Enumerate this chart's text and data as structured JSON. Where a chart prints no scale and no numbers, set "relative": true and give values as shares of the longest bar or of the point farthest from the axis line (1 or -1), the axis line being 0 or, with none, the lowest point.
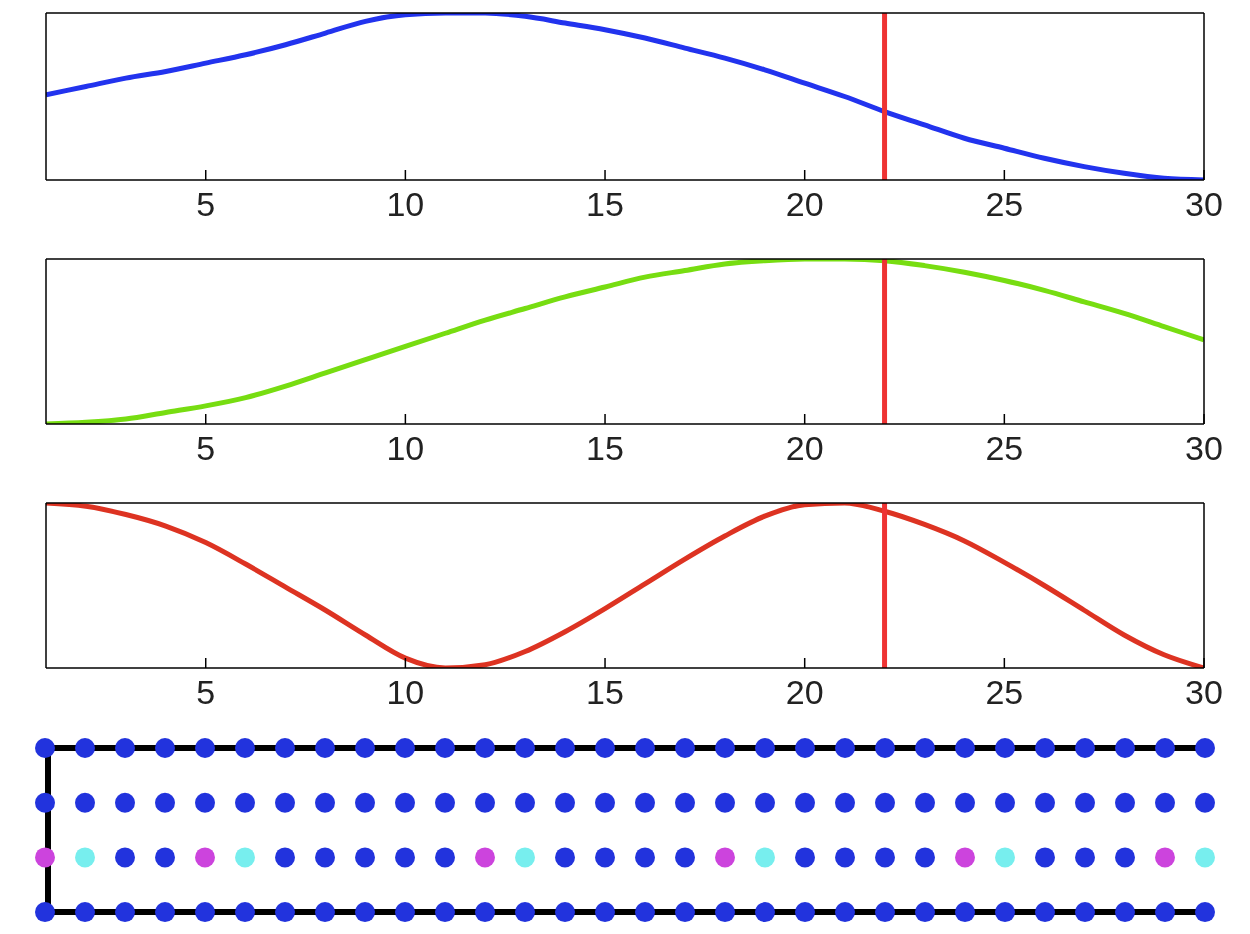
{
  "chart_data": [
    {
      "type": "line",
      "relative": true,
      "tick_labels": "x",
      "x": [
        1,
        2,
        3,
        4,
        5,
        6,
        7,
        8,
        9,
        10,
        11,
        12,
        13,
        14,
        15,
        16,
        17,
        18,
        19,
        20,
        21,
        22,
        23,
        24,
        25,
        26,
        27,
        28,
        29,
        30
      ],
      "xlim": [
        1,
        30
      ],
      "xticks": [
        5,
        10,
        15,
        20,
        25,
        30
      ],
      "series": [
        {
          "color": "#2233ee",
          "values": [
            0.51,
            0.56,
            0.61,
            0.65,
            0.7,
            0.75,
            0.81,
            0.88,
            0.95,
            0.99,
            1,
            1,
            0.98,
            0.94,
            0.9,
            0.85,
            0.79,
            0.73,
            0.66,
            0.58,
            0.5,
            0.41,
            0.33,
            0.25,
            0.19,
            0.13,
            0.08,
            0.04,
            0.01,
            0
          ]
        }
      ],
      "ref_lines": [
        {
          "axis": "x",
          "value": 22,
          "color": "#ee3333"
        }
      ]
    },
    {
      "type": "line",
      "relative": true,
      "tick_labels": "x",
      "x": [
        1,
        2,
        3,
        4,
        5,
        6,
        7,
        8,
        9,
        10,
        11,
        12,
        13,
        14,
        15,
        16,
        17,
        18,
        19,
        20,
        21,
        22,
        23,
        24,
        25,
        26,
        27,
        28,
        29,
        30
      ],
      "xlim": [
        1,
        30
      ],
      "xticks": [
        5,
        10,
        15,
        20,
        25,
        30
      ],
      "series": [
        {
          "color": "#77dd11",
          "values": [
            0,
            0.01,
            0.03,
            0.07,
            0.11,
            0.16,
            0.23,
            0.31,
            0.39,
            0.47,
            0.55,
            0.63,
            0.7,
            0.77,
            0.83,
            0.89,
            0.93,
            0.97,
            0.99,
            1,
            1,
            0.99,
            0.96,
            0.92,
            0.87,
            0.81,
            0.74,
            0.67,
            0.59,
            0.51
          ]
        }
      ],
      "ref_lines": [
        {
          "axis": "x",
          "value": 22,
          "color": "#ee3333"
        }
      ]
    },
    {
      "type": "line",
      "relative": true,
      "tick_labels": "x",
      "x": [
        1,
        2,
        3,
        4,
        5,
        6,
        7,
        8,
        9,
        10,
        11,
        12,
        13,
        14,
        15,
        16,
        17,
        18,
        19,
        20,
        21,
        22,
        23,
        24,
        25,
        26,
        27,
        28,
        29,
        30
      ],
      "xlim": [
        1,
        30
      ],
      "xticks": [
        5,
        10,
        15,
        20,
        25,
        30
      ],
      "series": [
        {
          "color": "#dd3322",
          "values": [
            1,
            0.98,
            0.93,
            0.86,
            0.76,
            0.63,
            0.49,
            0.35,
            0.2,
            0.06,
            0,
            0.02,
            0.1,
            0.22,
            0.36,
            0.51,
            0.66,
            0.8,
            0.92,
            0.99,
            1,
            0.95,
            0.87,
            0.77,
            0.64,
            0.5,
            0.35,
            0.2,
            0.08,
            0
          ]
        }
      ],
      "ref_lines": [
        {
          "axis": "x",
          "value": 22,
          "color": "#ee3333"
        }
      ]
    }
  ]
}
